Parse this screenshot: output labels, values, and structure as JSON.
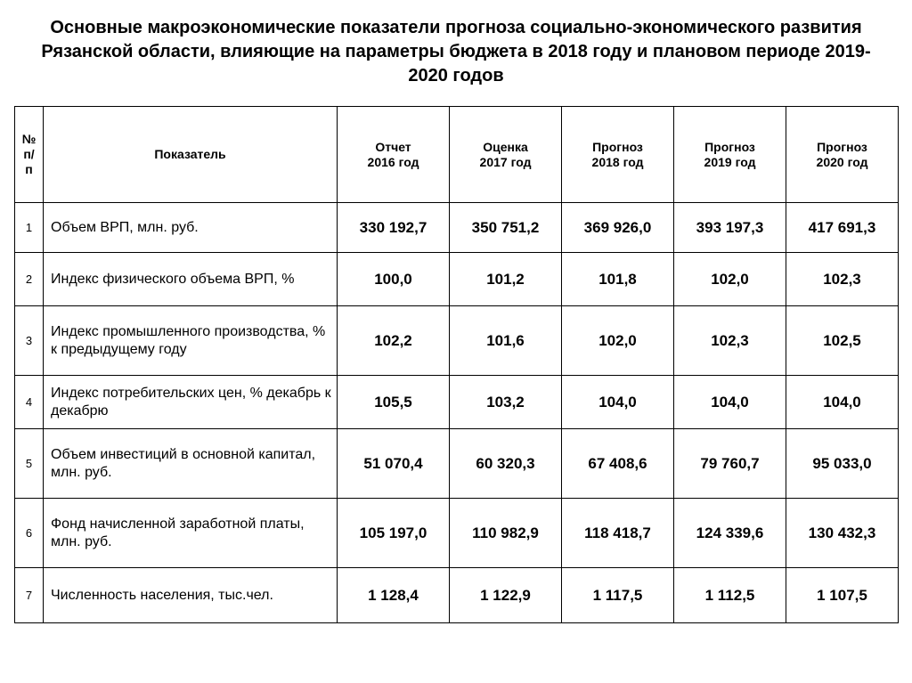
{
  "title": "Основные макроэкономические показатели прогноза социально-экономического развития Рязанской области, влияющие на параметры бюджета в 2018 году и плановом периоде 2019-2020 годов",
  "table": {
    "columns": {
      "num": "№ п/п",
      "indicator": "Показатель",
      "year1_line1": "Отчет",
      "year1_line2": "2016 год",
      "year2_line1": "Оценка",
      "year2_line2": "2017 год",
      "year3_line1": "Прогноз",
      "year3_line2": "2018 год",
      "year4_line1": "Прогноз",
      "year4_line2": "2019 год",
      "year5_line1": "Прогноз",
      "year5_line2": "2020 год"
    },
    "rows": [
      {
        "num": "1",
        "indicator": "Объем ВРП, млн. руб.",
        "values": [
          "330 192,7",
          "350 751,2",
          "369 926,0",
          "393 197,3",
          "417 691,3"
        ]
      },
      {
        "num": "2",
        "indicator": "Индекс физического объема ВРП, %",
        "values": [
          "100,0",
          "101,2",
          "101,8",
          "102,0",
          "102,3"
        ]
      },
      {
        "num": "3",
        "indicator": "Индекс промышленного производства, % к предыдущему году",
        "values": [
          "102,2",
          "101,6",
          "102,0",
          "102,3",
          "102,5"
        ]
      },
      {
        "num": "4",
        "indicator": "Индекс потребительских цен, % декабрь к декабрю",
        "values": [
          "105,5",
          "103,2",
          "104,0",
          "104,0",
          "104,0"
        ]
      },
      {
        "num": "5",
        "indicator": "Объем инвестиций в основной капитал,  млн.  руб.",
        "values": [
          "51 070,4",
          "60 320,3",
          "67 408,6",
          "79 760,7",
          "95 033,0"
        ]
      },
      {
        "num": "6",
        "indicator": "Фонд начисленной заработной платы, млн. руб.",
        "values": [
          "105 197,0",
          "110 982,9",
          "118 418,7",
          "124 339,6",
          "130 432,3"
        ]
      },
      {
        "num": "7",
        "indicator": "Численность населения, тыс.чел.",
        "values": [
          "1 128,4",
          "1 122,9",
          "1 117,5",
          "1 112,5",
          "1 107,5"
        ]
      }
    ]
  },
  "styling": {
    "background_color": "#ffffff",
    "border_color": "#000000",
    "text_color": "#000000",
    "title_fontsize": 20,
    "header_fontsize": 14,
    "value_fontsize": 17,
    "indicator_fontsize": 16,
    "value_fontweight": "bold",
    "font_family": "Arial"
  }
}
